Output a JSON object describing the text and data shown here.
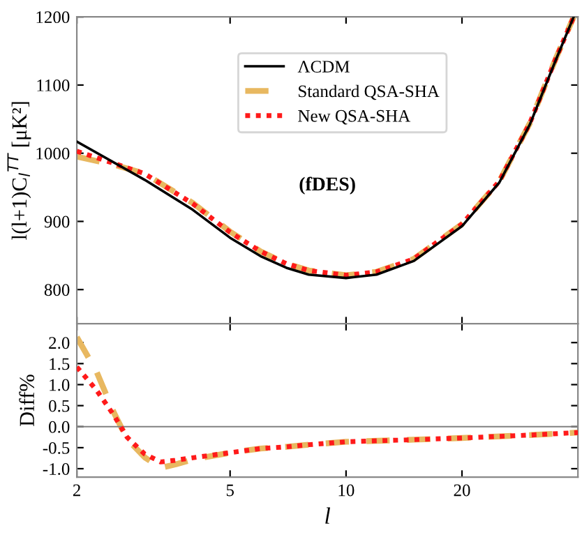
{
  "chart_data": [
    {
      "type": "line",
      "ylabel": "l(l+1)C$_{l}$$^{TT}$ [μK²]",
      "annotations": [
        "(fDES)"
      ],
      "log": "x",
      "xlim": [
        2,
        40
      ],
      "xticks": [
        {
          "value": 2,
          "label": null
        },
        {
          "value": 5,
          "label": null
        },
        {
          "value": 10,
          "label": null
        },
        {
          "value": 20,
          "label": null
        }
      ],
      "ylim": [
        750,
        1200
      ],
      "yticks": [
        800,
        900,
        1000,
        1100,
        1200
      ],
      "tick_labels": "y",
      "grid": false,
      "legend": "top",
      "series": [
        {
          "name": "ΛCDM",
          "color": "#000000",
          "line_style": "solid",
          "x": [
            2,
            3,
            4,
            5,
            6,
            7,
            8,
            10,
            12,
            15,
            20,
            25,
            30,
            35,
            39
          ],
          "values": [
            1017,
            961,
            917,
            876,
            849,
            832,
            822,
            817,
            822,
            842,
            893,
            957,
            1042,
            1136,
            1200
          ]
        },
        {
          "name": "Standard QSA-SHA",
          "color": "#e8b860",
          "line_style": "dashed",
          "x": [
            2,
            2.5,
            3,
            4,
            5,
            6,
            7,
            8,
            10,
            12,
            15,
            20,
            25,
            30,
            35,
            39
          ],
          "values": [
            995,
            983,
            970,
            927,
            885,
            856,
            838,
            828,
            821,
            826,
            845,
            896,
            959,
            1044,
            1138,
            1200
          ]
        },
        {
          "name": "New QSA-SHA",
          "color": "#ff1a1a",
          "line_style": "dotted",
          "x": [
            2,
            2.5,
            3,
            4,
            5,
            6,
            7,
            8,
            10,
            12,
            15,
            20,
            25,
            30,
            35,
            39
          ],
          "values": [
            1003,
            985,
            970,
            926,
            884,
            856,
            838,
            828,
            821,
            826,
            845,
            896,
            959,
            1044,
            1138,
            1200
          ]
        }
      ]
    },
    {
      "type": "line",
      "xlabel": "l",
      "ylabel": "Diff%",
      "log": "x",
      "xlim": [
        2,
        40
      ],
      "xticks": [
        2,
        5,
        10,
        20
      ],
      "ylim": [
        -1.2,
        2.45
      ],
      "yticks": [
        {
          "value": -1,
          "label": "-1.0"
        },
        {
          "value": -0.5,
          "label": "-0.5"
        },
        {
          "value": 0,
          "label": "0.0"
        },
        {
          "value": 0.5,
          "label": "0.5"
        },
        {
          "value": 1,
          "label": "1.0"
        },
        {
          "value": 1.5,
          "label": "1.5"
        },
        {
          "value": 2,
          "label": "2.0"
        }
      ],
      "grid": false,
      "ref_lines": [
        {
          "axis": "y",
          "value": 0,
          "color": "#808080"
        }
      ],
      "series": [
        {
          "color": "#e8b860",
          "line_style": "dashed",
          "x": [
            2,
            2.25,
            2.5,
            2.7,
            3,
            3.3,
            3.6,
            4,
            5,
            6,
            7,
            8,
            10,
            15,
            20,
            30,
            40
          ],
          "values": [
            2.13,
            1.31,
            0.32,
            -0.29,
            -0.73,
            -0.98,
            -0.9,
            -0.78,
            -0.62,
            -0.52,
            -0.48,
            -0.43,
            -0.36,
            -0.31,
            -0.27,
            -0.2,
            -0.14
          ]
        },
        {
          "color": "#ff1a1a",
          "line_style": "dotted",
          "x": [
            2,
            2.25,
            2.5,
            2.7,
            3,
            3.3,
            3.6,
            4,
            5,
            6,
            7,
            8,
            10,
            15,
            20,
            30,
            40
          ],
          "values": [
            1.42,
            0.87,
            0.26,
            -0.25,
            -0.65,
            -0.84,
            -0.8,
            -0.74,
            -0.62,
            -0.52,
            -0.48,
            -0.43,
            -0.36,
            -0.31,
            -0.27,
            -0.2,
            -0.14
          ]
        }
      ]
    }
  ]
}
